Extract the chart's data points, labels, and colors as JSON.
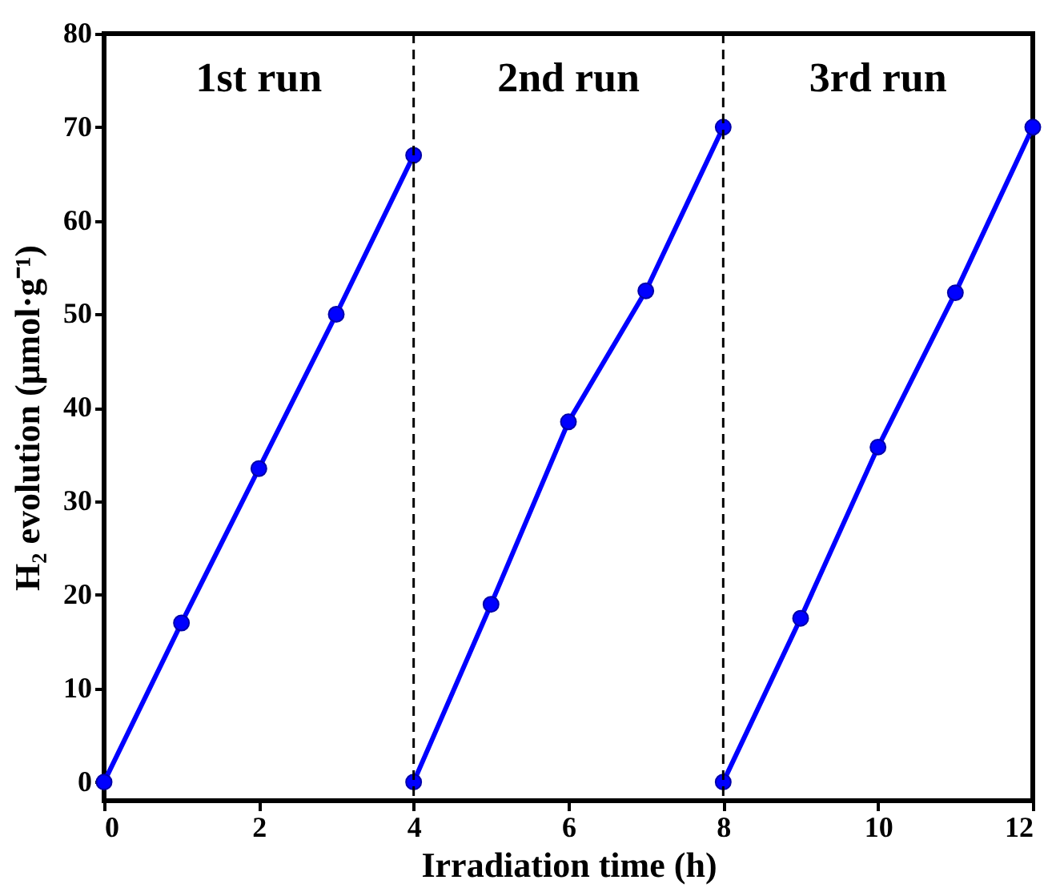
{
  "chart_data": {
    "type": "line",
    "xlabel": "Irradiation time (h)",
    "ylabel": "H₂ evolution (μmol·g⁻¹)",
    "series": [
      {
        "color": "#0000ff",
        "x": [
          0,
          1,
          2,
          3,
          4
        ],
        "values": [
          0,
          17,
          33.5,
          50,
          67
        ]
      },
      {
        "color": "#0000ff",
        "x": [
          4,
          5,
          6,
          7,
          8
        ],
        "values": [
          0,
          19,
          38.5,
          52.5,
          70
        ]
      },
      {
        "color": "#0000ff",
        "x": [
          8,
          9,
          10,
          11,
          12
        ],
        "values": [
          0,
          17.5,
          35.8,
          52.3,
          70
        ]
      }
    ],
    "xlim": [
      0,
      12
    ],
    "xticks": [
      0,
      2,
      4,
      6,
      8,
      10,
      12
    ],
    "ylim": [
      -2,
      80
    ],
    "yticks": [
      0,
      10,
      20,
      30,
      40,
      50,
      60,
      70,
      80
    ],
    "ref_lines": [
      {
        "axis": "x",
        "value": 4,
        "color": "#000000",
        "line_style": "dashed"
      },
      {
        "axis": "x",
        "value": 8,
        "color": "#000000",
        "line_style": "dashed"
      }
    ],
    "annotations": [
      "1st run",
      "2nd run",
      "3rd run"
    ],
    "marker": "circle",
    "grid": false
  }
}
